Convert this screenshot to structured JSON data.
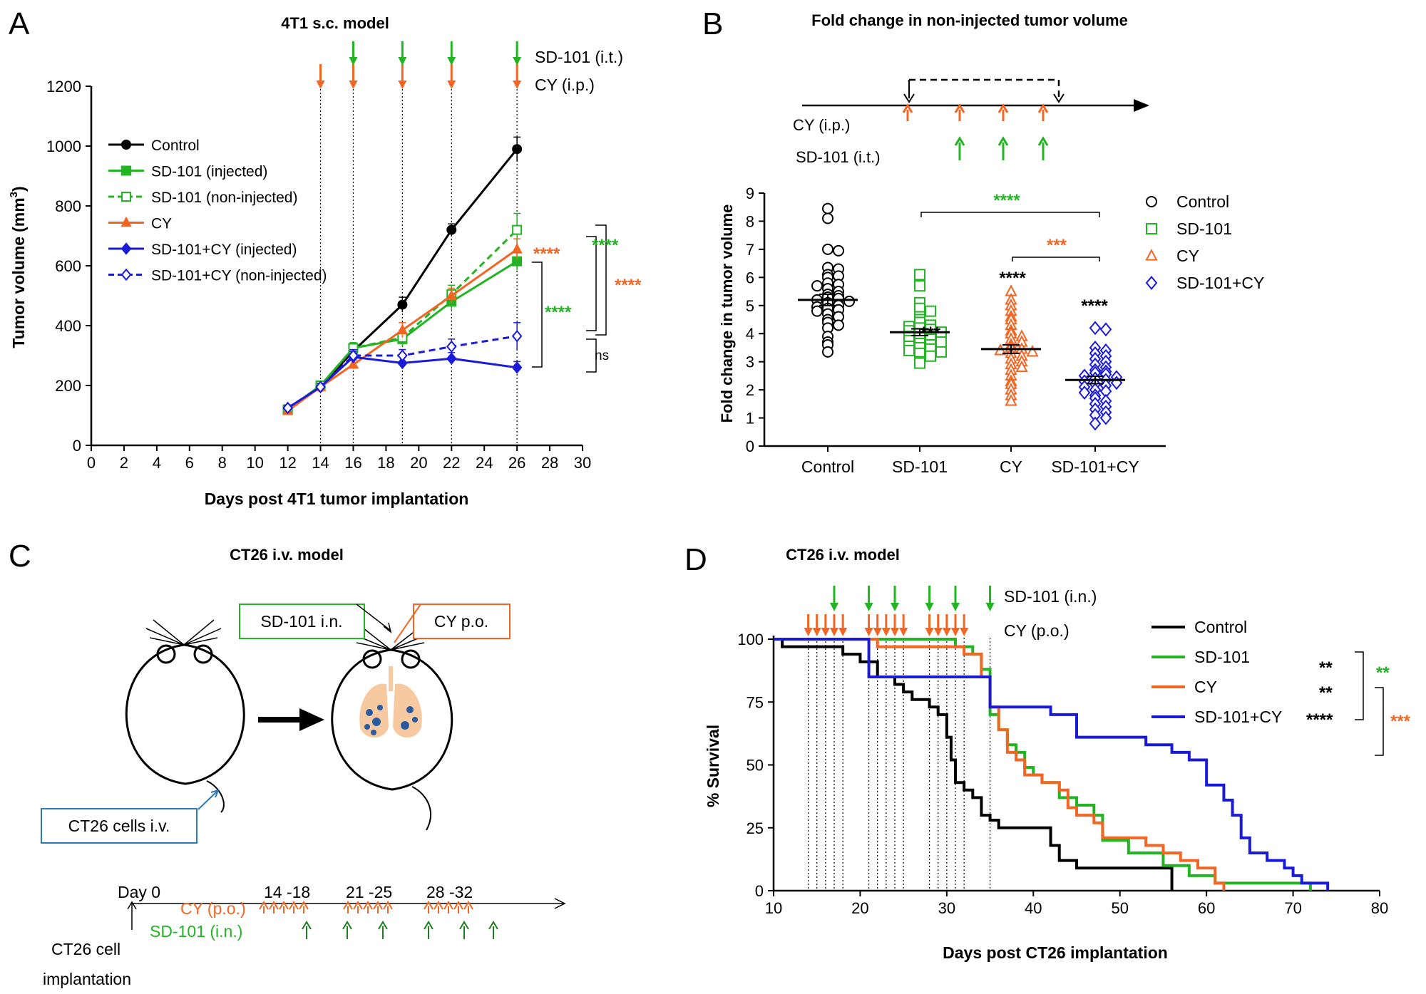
{
  "colors": {
    "black": "#000000",
    "green": "#22b422",
    "orange": "#f26522",
    "blue": "#1a1adb",
    "cyan_box": "#2a7ab8",
    "lung": "#f7c9a0",
    "nodule": "#2a5a9e"
  },
  "panel_letters": [
    "A",
    "B",
    "C",
    "D"
  ],
  "chart_data": [
    {
      "panel": "A",
      "type": "line",
      "title": "4T1 s.c. model",
      "xlabel": "Days post 4T1 tumor implantation",
      "ylabel": "Tumor volume",
      "ylabel_unit": "(mm",
      "ylabel_sup": "3",
      "ylabel_close": ")",
      "xlim": [
        0,
        30
      ],
      "ylim": [
        0,
        1200
      ],
      "xticks": [
        "0",
        "2",
        "4",
        "6",
        "8",
        "10",
        "12",
        "14",
        "16",
        "18",
        "20",
        "22",
        "24",
        "26",
        "28",
        "30"
      ],
      "yticks": [
        "0",
        "200",
        "400",
        "600",
        "800",
        "1000",
        "1200"
      ],
      "dose_days": {
        "cy": [
          14,
          16,
          19,
          22,
          26
        ],
        "sd101": [
          16,
          19,
          22,
          26
        ]
      },
      "dose_labels": [
        "SD-101 (i.t.)",
        "CY (i.p.)"
      ],
      "series": [
        {
          "name": "Control",
          "color": "#000000",
          "dash": false,
          "marker": "circle",
          "fill": true,
          "x": [
            12,
            14,
            16,
            19,
            22,
            26
          ],
          "values": [
            120,
            195,
            315,
            470,
            720,
            990
          ],
          "err": [
            10,
            12,
            20,
            25,
            20,
            40
          ]
        },
        {
          "name": "SD-101 (injected)",
          "color": "#22b422",
          "dash": false,
          "marker": "square",
          "fill": true,
          "x": [
            12,
            14,
            16,
            19,
            22,
            26
          ],
          "values": [
            120,
            200,
            325,
            355,
            480,
            615
          ],
          "err": [
            10,
            12,
            18,
            25,
            30,
            30
          ]
        },
        {
          "name": "SD-101 (non-injected)",
          "color": "#22b422",
          "dash": true,
          "marker": "square",
          "fill": false,
          "x": [
            12,
            14,
            16,
            19,
            22,
            26
          ],
          "values": [
            118,
            200,
            325,
            360,
            505,
            720
          ],
          "err": [
            10,
            12,
            18,
            25,
            30,
            55
          ]
        },
        {
          "name": "CY",
          "color": "#f26522",
          "dash": false,
          "marker": "triangle",
          "fill": true,
          "x": [
            12,
            14,
            16,
            19,
            22,
            26
          ],
          "values": [
            115,
            195,
            270,
            385,
            500,
            655
          ],
          "err": [
            10,
            12,
            15,
            25,
            25,
            35
          ]
        },
        {
          "name": "SD-101+CY (injected)",
          "color": "#1a1adb",
          "dash": false,
          "marker": "diamond",
          "fill": true,
          "x": [
            12,
            14,
            16,
            19,
            22,
            26
          ],
          "values": [
            125,
            195,
            295,
            275,
            290,
            260
          ],
          "err": [
            10,
            12,
            20,
            20,
            20,
            20
          ]
        },
        {
          "name": "SD-101+CY (non-injected)",
          "color": "#1a1adb",
          "dash": true,
          "marker": "diamond",
          "fill": false,
          "x": [
            12,
            14,
            16,
            19,
            22,
            26
          ],
          "values": [
            125,
            195,
            300,
            300,
            330,
            365
          ],
          "err": [
            10,
            12,
            20,
            20,
            25,
            45
          ]
        }
      ],
      "significance": [
        {
          "label": "****",
          "color": "#f26522"
        },
        {
          "label": "****",
          "color": "#22b422"
        },
        {
          "label": "****",
          "color": "#22b422"
        },
        {
          "label": "****",
          "color": "#f26522"
        },
        {
          "label": "ns",
          "color": "#000000"
        }
      ]
    },
    {
      "panel": "B",
      "type": "scatter",
      "title": "Fold change in non-injected tumor volume",
      "ylabel": "Fold change in tumor volume",
      "categories": [
        "Control",
        "SD-101",
        "CY",
        "SD-101+CY"
      ],
      "ylim": [
        0,
        9
      ],
      "yticks": [
        "0",
        "1",
        "2",
        "3",
        "4",
        "5",
        "6",
        "7",
        "8",
        "9"
      ],
      "means": [
        5.2,
        4.05,
        3.45,
        2.35
      ],
      "sem": [
        0.2,
        0.12,
        0.15,
        0.13
      ],
      "series": [
        {
          "name": "Control",
          "color": "#000000",
          "marker": "circle",
          "values": [
            8.45,
            8.1,
            7.0,
            6.95,
            6.35,
            6.3,
            6.1,
            6.05,
            6.0,
            5.8,
            5.75,
            5.7,
            5.6,
            5.5,
            5.4,
            5.35,
            5.3,
            5.25,
            5.2,
            5.15,
            5.1,
            5.0,
            4.95,
            4.9,
            4.85,
            4.8,
            4.7,
            4.6,
            4.5,
            4.4,
            4.3,
            4.2,
            3.9,
            3.7,
            3.6,
            3.35
          ]
        },
        {
          "name": "SD-101",
          "color": "#22b422",
          "marker": "square",
          "values": [
            6.1,
            5.7,
            5.1,
            4.9,
            4.8,
            4.6,
            4.5,
            4.4,
            4.3,
            4.25,
            4.2,
            4.15,
            4.1,
            4.05,
            4.0,
            3.95,
            3.9,
            3.85,
            3.8,
            3.75,
            3.7,
            3.65,
            3.6,
            3.55,
            3.5,
            3.45,
            3.4,
            3.35,
            3.3,
            3.2,
            3.0,
            2.95
          ]
        },
        {
          "name": "CY",
          "color": "#f26522",
          "marker": "triangle",
          "values": [
            5.5,
            5.2,
            5.0,
            4.8,
            4.6,
            4.5,
            4.3,
            4.1,
            4.0,
            3.9,
            3.8,
            3.7,
            3.6,
            3.5,
            3.45,
            3.4,
            3.35,
            3.3,
            3.2,
            3.1,
            3.0,
            2.9,
            2.8,
            2.7,
            2.5,
            2.3,
            2.2,
            2.0,
            1.8,
            1.6
          ]
        },
        {
          "name": "SD-101+CY",
          "color": "#1a1adb",
          "marker": "diamond",
          "values": [
            4.2,
            4.15,
            3.5,
            3.4,
            3.3,
            3.2,
            3.1,
            3.0,
            2.9,
            2.8,
            2.7,
            2.65,
            2.6,
            2.55,
            2.5,
            2.45,
            2.4,
            2.35,
            2.3,
            2.25,
            2.2,
            2.15,
            2.1,
            2.0,
            1.95,
            1.9,
            1.8,
            1.7,
            1.6,
            1.5,
            1.4,
            1.3,
            1.2,
            1.1,
            1.0,
            0.8
          ]
        }
      ],
      "significance": [
        {
          "label": "***",
          "color": "#000000"
        },
        {
          "label": "****",
          "color": "#000000"
        },
        {
          "label": "****",
          "color": "#000000"
        },
        {
          "label": "****",
          "color": "#22b422"
        },
        {
          "label": "***",
          "color": "#f26522"
        }
      ],
      "schedule_labels": [
        "CY (i.p.)",
        "SD-101 (i.t.)"
      ]
    },
    {
      "panel": "D",
      "type": "line",
      "subtype": "kaplan-meier",
      "title": "CT26 i.v. model",
      "xlabel": "Days post CT26 implantation",
      "ylabel": "% Survival",
      "xlim": [
        10,
        80
      ],
      "ylim": [
        0,
        100
      ],
      "xticks": [
        "10",
        "20",
        "30",
        "40",
        "50",
        "60",
        "70",
        "80"
      ],
      "yticks": [
        "0",
        "25",
        "50",
        "75",
        "100"
      ],
      "dose_days": {
        "cy": [
          14,
          15,
          16,
          17,
          18,
          21,
          22,
          23,
          24,
          25,
          28,
          29,
          30,
          31,
          32
        ],
        "sd101": [
          17,
          21,
          24,
          28,
          31,
          35
        ]
      },
      "dose_labels": [
        "SD-101 (i.n.)",
        "CY (p.o.)"
      ],
      "series": [
        {
          "name": "Control",
          "color": "#000000",
          "steps": [
            [
              10,
              100
            ],
            [
              11,
              97
            ],
            [
              18,
              94
            ],
            [
              20,
              91
            ],
            [
              22,
              85
            ],
            [
              24,
              82
            ],
            [
              25,
              79
            ],
            [
              26,
              76
            ],
            [
              28,
              73
            ],
            [
              29,
              70
            ],
            [
              30,
              61
            ],
            [
              30.5,
              52
            ],
            [
              31,
              43
            ],
            [
              32,
              40
            ],
            [
              33,
              37
            ],
            [
              34,
              30
            ],
            [
              35,
              28
            ],
            [
              36,
              25
            ],
            [
              42,
              18
            ],
            [
              43,
              12
            ],
            [
              45,
              9
            ],
            [
              56,
              0
            ]
          ]
        },
        {
          "name": "SD-101",
          "color": "#22b422",
          "steps": [
            [
              10,
              100
            ],
            [
              31,
              97
            ],
            [
              33,
              94
            ],
            [
              34,
              88
            ],
            [
              35,
              70
            ],
            [
              36,
              64
            ],
            [
              37,
              58
            ],
            [
              38,
              55
            ],
            [
              39,
              49
            ],
            [
              40,
              46
            ],
            [
              41,
              43
            ],
            [
              43,
              37
            ],
            [
              45,
              34
            ],
            [
              47,
              30
            ],
            [
              48,
              20
            ],
            [
              51,
              15
            ],
            [
              55,
              10
            ],
            [
              58,
              6
            ],
            [
              61,
              3
            ],
            [
              72,
              0
            ]
          ]
        },
        {
          "name": "CY",
          "color": "#f26522",
          "steps": [
            [
              10,
              100
            ],
            [
              22,
              97
            ],
            [
              32,
              94
            ],
            [
              34,
              85
            ],
            [
              35,
              73
            ],
            [
              36,
              64
            ],
            [
              37,
              55
            ],
            [
              38,
              52
            ],
            [
              39,
              46
            ],
            [
              41,
              43
            ],
            [
              43,
              40
            ],
            [
              44,
              33
            ],
            [
              45,
              30
            ],
            [
              47,
              27
            ],
            [
              48,
              21
            ],
            [
              53,
              18
            ],
            [
              55,
              15
            ],
            [
              57,
              12
            ],
            [
              59,
              9
            ],
            [
              61,
              3
            ],
            [
              62,
              0
            ]
          ]
        },
        {
          "name": "SD-101+CY",
          "color": "#1a1adb",
          "steps": [
            [
              10,
              100
            ],
            [
              21,
              85
            ],
            [
              35,
              73
            ],
            [
              42,
              70
            ],
            [
              45,
              61
            ],
            [
              53,
              58
            ],
            [
              56,
              55
            ],
            [
              58,
              52
            ],
            [
              60,
              42
            ],
            [
              62,
              36
            ],
            [
              63,
              30
            ],
            [
              64,
              21
            ],
            [
              65,
              15
            ],
            [
              67,
              12
            ],
            [
              69,
              9
            ],
            [
              70,
              6
            ],
            [
              71,
              3
            ],
            [
              74,
              0
            ]
          ]
        }
      ],
      "significance": [
        {
          "label": "**",
          "color": "#000000"
        },
        {
          "label": "**",
          "color": "#000000"
        },
        {
          "label": "****",
          "color": "#000000"
        },
        {
          "label": "**",
          "color": "#22b422"
        },
        {
          "label": "***",
          "color": "#f26522"
        }
      ]
    }
  ],
  "panelC": {
    "title": "CT26 i.v. model",
    "box_sd101": "SD-101 i.n.",
    "box_cy": "CY p.o.",
    "box_cells": "CT26 cells i.v.",
    "timeline_day0": "Day 0",
    "timeline_ranges": [
      "14 -18",
      "21 -25",
      "28 -32"
    ],
    "timeline_cy": "CY (p.o.)",
    "timeline_sd101": "SD-101 (i.n.)",
    "implant_line1": "CT26 cell",
    "implant_line2": "implantation"
  }
}
